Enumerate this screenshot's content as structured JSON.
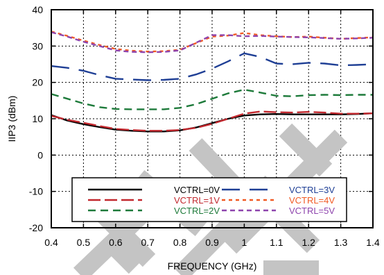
{
  "chart_data": {
    "type": "line",
    "title": "",
    "xlabel": "FREQUENCY (GHz)",
    "ylabel": "IIP3 (dBm)",
    "xlim": [
      0.4,
      1.4
    ],
    "ylim": [
      -20,
      40
    ],
    "xticks": [
      "0.4",
      "0.5",
      "0.6",
      "0.7",
      "0.8",
      "0.9",
      "1",
      "1.1",
      "1.2",
      "1.3",
      "1.4"
    ],
    "yticks": [
      "40",
      "30",
      "20",
      "10",
      "0",
      "-10",
      "-20"
    ],
    "grid": true,
    "legend_position": "bottom",
    "watermark": "ETE",
    "series": [
      {
        "name": "VCTRL=0V",
        "color": "#000000",
        "dash": "solid",
        "x": [
          0.4,
          0.45,
          0.5,
          0.55,
          0.6,
          0.65,
          0.7,
          0.75,
          0.8,
          0.85,
          0.9,
          0.95,
          1.0,
          1.05,
          1.1,
          1.15,
          1.2,
          1.25,
          1.3,
          1.35,
          1.4
        ],
        "y": [
          11.0,
          9.5,
          8.5,
          7.7,
          7.0,
          6.7,
          6.5,
          6.5,
          6.8,
          7.6,
          8.8,
          10.0,
          10.9,
          11.2,
          11.3,
          11.2,
          11.2,
          11.2,
          11.2,
          11.3,
          11.5
        ]
      },
      {
        "name": "VCTRL=1V",
        "color": "#c1272d",
        "dash": "long",
        "x": [
          0.4,
          0.45,
          0.5,
          0.55,
          0.6,
          0.65,
          0.7,
          0.75,
          0.8,
          0.85,
          0.9,
          0.95,
          1.0,
          1.05,
          1.1,
          1.15,
          1.2,
          1.25,
          1.3,
          1.35,
          1.4
        ],
        "y": [
          10.8,
          9.7,
          8.9,
          8.0,
          7.2,
          6.9,
          6.7,
          6.7,
          6.9,
          7.5,
          8.6,
          10.0,
          11.4,
          12.0,
          11.8,
          11.7,
          11.9,
          11.7,
          11.4,
          11.4,
          11.5
        ]
      },
      {
        "name": "VCTRL=2V",
        "color": "#1d7a3a",
        "dash": "medium",
        "x": [
          0.4,
          0.45,
          0.5,
          0.55,
          0.6,
          0.65,
          0.7,
          0.75,
          0.8,
          0.85,
          0.9,
          0.95,
          1.0,
          1.05,
          1.1,
          1.15,
          1.2,
          1.25,
          1.3,
          1.35,
          1.4
        ],
        "y": [
          16.8,
          15.5,
          14.2,
          13.2,
          12.7,
          12.6,
          12.6,
          12.6,
          13.0,
          14.0,
          15.5,
          17.0,
          18.0,
          17.2,
          16.3,
          16.2,
          16.5,
          16.6,
          16.5,
          16.6,
          16.6
        ]
      },
      {
        "name": "VCTRL=3V",
        "color": "#1f3f95",
        "dash": "longgap",
        "x": [
          0.4,
          0.45,
          0.5,
          0.55,
          0.6,
          0.65,
          0.7,
          0.75,
          0.8,
          0.85,
          0.9,
          0.95,
          1.0,
          1.05,
          1.1,
          1.15,
          1.2,
          1.25,
          1.3,
          1.35,
          1.4
        ],
        "y": [
          24.5,
          24.0,
          23.2,
          22.0,
          21.0,
          20.8,
          20.6,
          20.7,
          21.0,
          22.2,
          23.8,
          25.8,
          28.0,
          27.0,
          25.2,
          25.0,
          25.4,
          25.2,
          24.7,
          24.8,
          25.0
        ]
      },
      {
        "name": "VCTRL=4V",
        "color": "#f15a24",
        "dash": "short",
        "x": [
          0.4,
          0.45,
          0.5,
          0.55,
          0.6,
          0.65,
          0.7,
          0.75,
          0.8,
          0.85,
          0.9,
          0.95,
          1.0,
          1.05,
          1.1,
          1.15,
          1.2,
          1.25,
          1.3,
          1.35,
          1.4
        ],
        "y": [
          34.0,
          32.8,
          31.5,
          30.3,
          29.2,
          28.7,
          28.5,
          28.6,
          29.0,
          30.8,
          32.6,
          32.9,
          33.6,
          33.0,
          32.7,
          32.5,
          32.6,
          32.3,
          32.0,
          32.2,
          32.4
        ]
      },
      {
        "name": "VCTRL=5V",
        "color": "#8e44ad",
        "dash": "dashed",
        "x": [
          0.4,
          0.45,
          0.5,
          0.55,
          0.6,
          0.65,
          0.7,
          0.75,
          0.8,
          0.85,
          0.9,
          0.95,
          1.0,
          1.05,
          1.1,
          1.15,
          1.2,
          1.25,
          1.3,
          1.35,
          1.4
        ],
        "y": [
          33.8,
          32.6,
          31.2,
          30.0,
          28.8,
          28.4,
          28.3,
          28.4,
          28.8,
          30.9,
          33.0,
          33.0,
          32.7,
          32.8,
          32.6,
          32.5,
          32.4,
          32.2,
          32.0,
          32.1,
          32.3
        ]
      }
    ]
  }
}
